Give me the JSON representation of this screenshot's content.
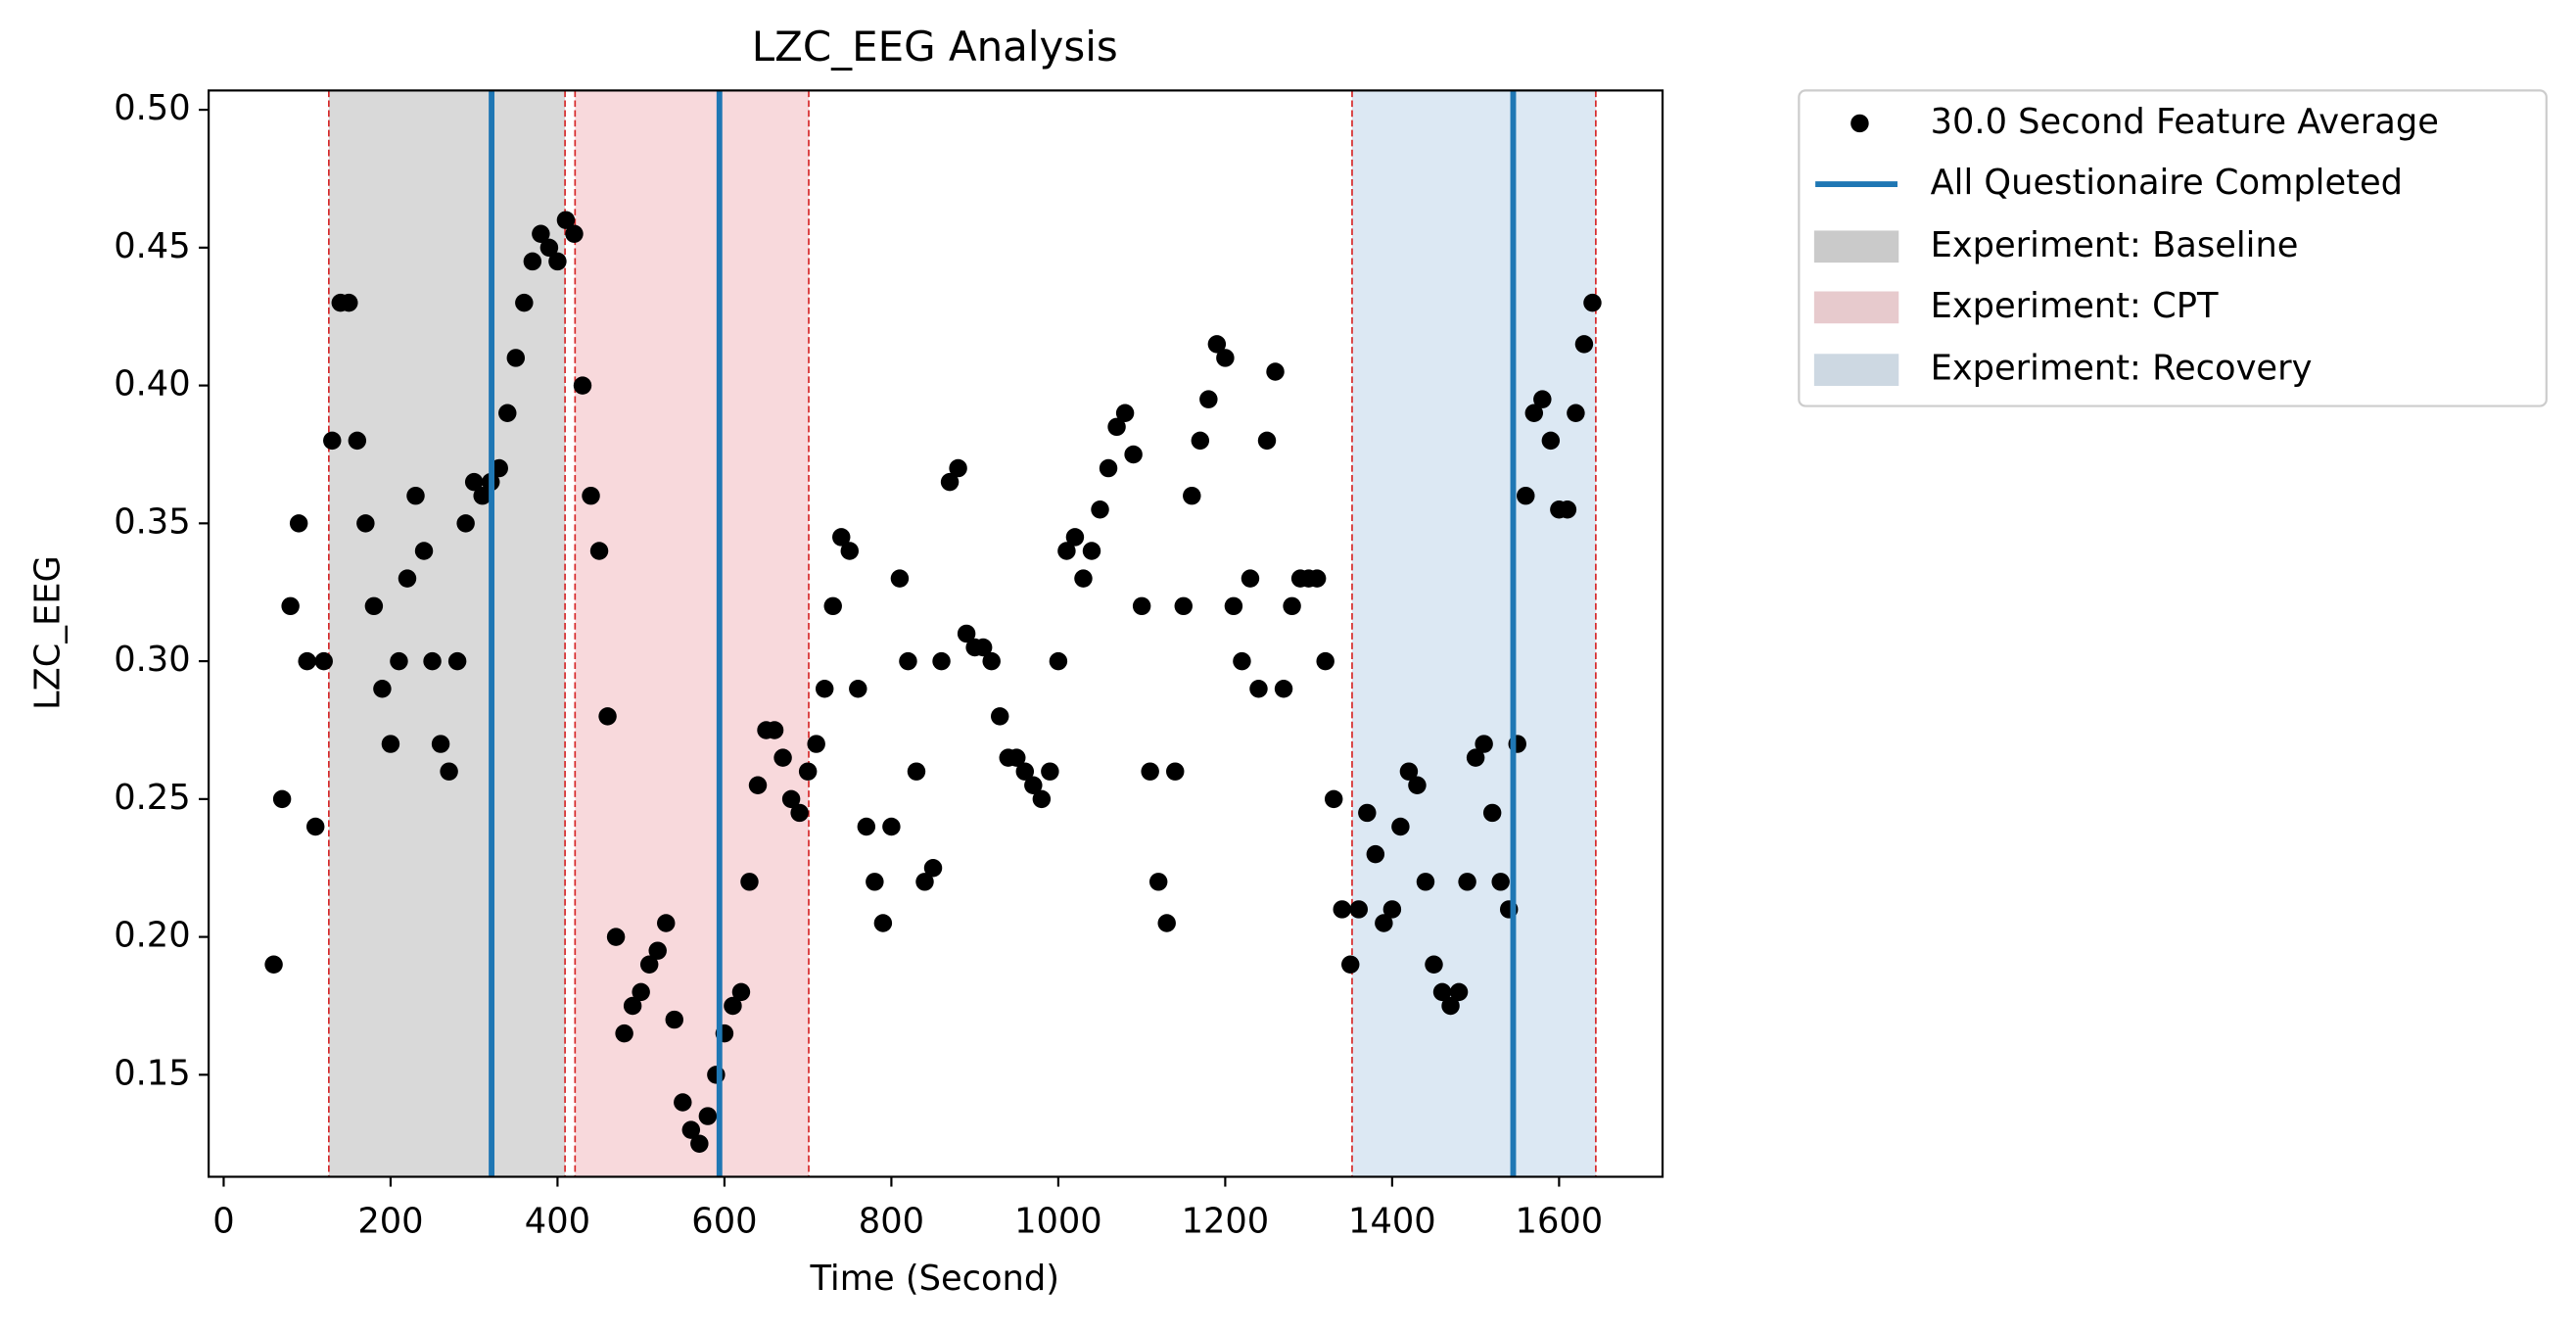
{
  "chart_data": {
    "type": "scatter",
    "title": "LZC_EEG Analysis",
    "x_label": "Time (Second)",
    "y_label": "LZC_EEG",
    "xlim": [
      -18,
      1724
    ],
    "ylim": [
      0.113,
      0.507
    ],
    "xticks": [
      0,
      200,
      400,
      600,
      800,
      1000,
      1200,
      1400,
      1600
    ],
    "yticks": [
      {
        "value": 0.15,
        "label": "0.15"
      },
      {
        "value": 0.2,
        "label": "0.20"
      },
      {
        "value": 0.25,
        "label": "0.25"
      },
      {
        "value": 0.3,
        "label": "0.30"
      },
      {
        "value": 0.35,
        "label": "0.35"
      },
      {
        "value": 0.4,
        "label": "0.40"
      },
      {
        "value": 0.45,
        "label": "0.45"
      },
      {
        "value": 0.5,
        "label": "0.50"
      }
    ],
    "series": [
      {
        "name": "30.0 Second Feature Average",
        "color": "#000000",
        "x": [
          60,
          70,
          80,
          90,
          100,
          110,
          120,
          130,
          140,
          150,
          160,
          170,
          180,
          190,
          200,
          210,
          220,
          230,
          240,
          250,
          260,
          270,
          280,
          290,
          300,
          310,
          320,
          330,
          340,
          350,
          360,
          370,
          380,
          390,
          400,
          410,
          420,
          430,
          440,
          450,
          460,
          470,
          480,
          490,
          500,
          510,
          520,
          530,
          540,
          550,
          560,
          570,
          580,
          590,
          600,
          610,
          620,
          630,
          640,
          650,
          660,
          670,
          680,
          690,
          700,
          710,
          720,
          730,
          740,
          750,
          760,
          770,
          780,
          790,
          800,
          810,
          820,
          830,
          840,
          850,
          860,
          870,
          880,
          890,
          900,
          910,
          920,
          930,
          940,
          950,
          960,
          970,
          980,
          990,
          1000,
          1010,
          1020,
          1030,
          1040,
          1050,
          1060,
          1070,
          1080,
          1090,
          1100,
          1110,
          1120,
          1130,
          1140,
          1150,
          1160,
          1170,
          1180,
          1190,
          1200,
          1210,
          1220,
          1230,
          1240,
          1250,
          1260,
          1270,
          1280,
          1290,
          1300,
          1310,
          1320,
          1330,
          1340,
          1350,
          1360,
          1370,
          1380,
          1390,
          1400,
          1410,
          1420,
          1430,
          1440,
          1450,
          1460,
          1470,
          1480,
          1490,
          1500,
          1510,
          1520,
          1530,
          1540,
          1550,
          1560,
          1570,
          1580,
          1590,
          1600,
          1610,
          1620,
          1630,
          1640
        ],
        "values": [
          0.19,
          0.25,
          0.32,
          0.35,
          0.3,
          0.24,
          0.3,
          0.38,
          0.43,
          0.43,
          0.38,
          0.35,
          0.32,
          0.29,
          0.27,
          0.3,
          0.33,
          0.36,
          0.34,
          0.3,
          0.27,
          0.26,
          0.3,
          0.35,
          0.365,
          0.36,
          0.365,
          0.37,
          0.39,
          0.41,
          0.43,
          0.445,
          0.455,
          0.45,
          0.445,
          0.46,
          0.455,
          0.4,
          0.36,
          0.34,
          0.28,
          0.2,
          0.165,
          0.175,
          0.18,
          0.19,
          0.195,
          0.205,
          0.17,
          0.14,
          0.13,
          0.125,
          0.135,
          0.15,
          0.165,
          0.175,
          0.18,
          0.22,
          0.255,
          0.275,
          0.275,
          0.265,
          0.25,
          0.245,
          0.26,
          0.27,
          0.29,
          0.32,
          0.345,
          0.34,
          0.29,
          0.24,
          0.22,
          0.205,
          0.24,
          0.33,
          0.3,
          0.26,
          0.22,
          0.225,
          0.3,
          0.365,
          0.37,
          0.31,
          0.305,
          0.305,
          0.3,
          0.28,
          0.265,
          0.265,
          0.26,
          0.255,
          0.25,
          0.26,
          0.3,
          0.34,
          0.345,
          0.33,
          0.34,
          0.355,
          0.37,
          0.385,
          0.39,
          0.375,
          0.32,
          0.26,
          0.22,
          0.205,
          0.26,
          0.32,
          0.36,
          0.38,
          0.395,
          0.415,
          0.41,
          0.32,
          0.3,
          0.33,
          0.29,
          0.38,
          0.405,
          0.29,
          0.32,
          0.33,
          0.33,
          0.33,
          0.3,
          0.25,
          0.21,
          0.19,
          0.21,
          0.245,
          0.23,
          0.205,
          0.21,
          0.24,
          0.26,
          0.255,
          0.22,
          0.19,
          0.18,
          0.175,
          0.18,
          0.22,
          0.265,
          0.27,
          0.245,
          0.22,
          0.21,
          0.27,
          0.36,
          0.39,
          0.395,
          0.38,
          0.355,
          0.355,
          0.39,
          0.415,
          0.43
        ]
      }
    ],
    "vlines": {
      "name": "All Questionaire Completed",
      "color": "#1f77b4",
      "x": [
        321,
        594,
        1545
      ]
    },
    "spans": [
      {
        "name": "Experiment: Baseline",
        "color": "#d9d9d9",
        "start": 126,
        "end": 409
      },
      {
        "name": "Experiment: CPT",
        "color": "#f8d9dc",
        "start": 421,
        "end": 701
      },
      {
        "name": "Experiment: Recovery",
        "color": "#dce8f3",
        "start": 1352,
        "end": 1644
      }
    ]
  }
}
